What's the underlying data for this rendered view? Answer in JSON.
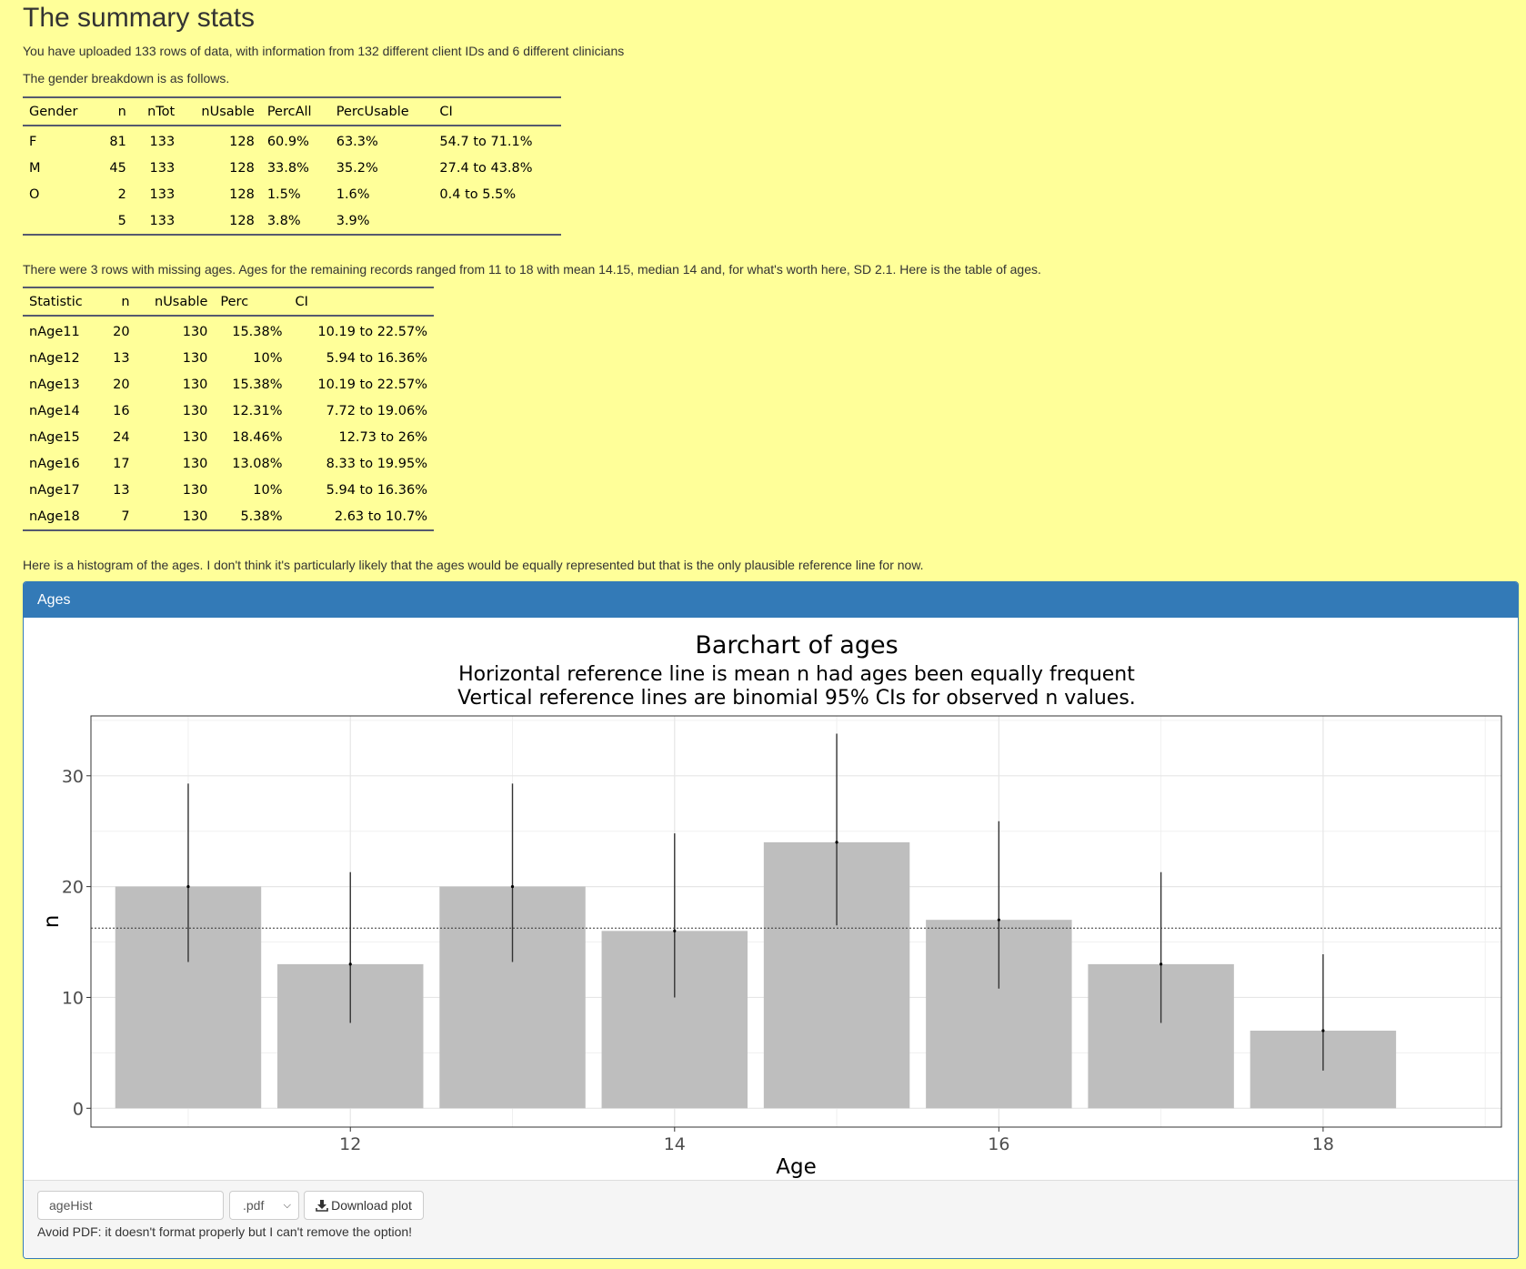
{
  "heading": "The summary stats",
  "intro": "You have uploaded 133 rows of data, with information from 132 different client IDs and 6 different clinicians",
  "gender_intro": "The gender breakdown is as follows.",
  "gender_table": {
    "headers": [
      "Gender",
      "n",
      "nTot",
      "nUsable",
      "PercAll",
      "PercUsable",
      "CI"
    ],
    "rows": [
      [
        "F",
        "81",
        "133",
        "128",
        "60.9%",
        "63.3%",
        "54.7 to 71.1%"
      ],
      [
        "M",
        "45",
        "133",
        "128",
        "33.8%",
        "35.2%",
        "27.4 to 43.8%"
      ],
      [
        "O",
        "2",
        "133",
        "128",
        "1.5%",
        "1.6%",
        "0.4 to 5.5%"
      ],
      [
        "",
        "5",
        "133",
        "128",
        "3.8%",
        "3.9%",
        ""
      ]
    ]
  },
  "age_intro": "There were 3 rows with missing ages. Ages for the remaining records ranged from 11 to 18 with mean 14.15, median 14 and, for what's worth here, SD 2.1. Here is the table of ages.",
  "age_table": {
    "headers": [
      "Statistic",
      "n",
      "nUsable",
      "Perc",
      "CI"
    ],
    "rows": [
      [
        "nAge11",
        "20",
        "130",
        "15.38%",
        "10.19 to 22.57%"
      ],
      [
        "nAge12",
        "13",
        "130",
        "10%",
        "5.94 to 16.36%"
      ],
      [
        "nAge13",
        "20",
        "130",
        "15.38%",
        "10.19 to 22.57%"
      ],
      [
        "nAge14",
        "16",
        "130",
        "12.31%",
        "7.72 to 19.06%"
      ],
      [
        "nAge15",
        "24",
        "130",
        "18.46%",
        "12.73 to 26%"
      ],
      [
        "nAge16",
        "17",
        "130",
        "13.08%",
        "8.33 to 19.95%"
      ],
      [
        "nAge17",
        "13",
        "130",
        "10%",
        "5.94 to 16.36%"
      ],
      [
        "nAge18",
        "7",
        "130",
        "5.38%",
        "2.63 to 10.7%"
      ]
    ]
  },
  "hist_intro": "Here is a histogram of the ages. I don't think it's particularly likely that the ages would be equally represented but that is the only plausible reference line for now.",
  "panel": {
    "title": "Ages",
    "filename_value": "ageHist",
    "format_selected": ".pdf",
    "download_label": "Download plot",
    "note": "Avoid PDF: it doesn't format properly but I can't remove the option!"
  },
  "colors": {
    "page_bg": "#ffff99",
    "panel_primary": "#337ab7",
    "bar_fill": "#bebebe"
  },
  "chart_data": {
    "type": "bar",
    "title": "Barchart of ages",
    "subtitle_lines": [
      "Horizontal reference line is mean n had ages been equally frequent",
      "Vertical reference lines are binomial 95% CIs for observed n values."
    ],
    "xlabel": "Age",
    "ylabel": "n",
    "categories": [
      11,
      12,
      13,
      14,
      15,
      16,
      17,
      18
    ],
    "values": [
      20,
      13,
      20,
      16,
      24,
      17,
      13,
      7
    ],
    "ci_low": [
      13.2,
      7.7,
      13.2,
      10.0,
      16.5,
      10.8,
      7.7,
      3.4
    ],
    "ci_high": [
      29.3,
      21.3,
      29.3,
      24.8,
      33.8,
      25.9,
      21.3,
      13.9
    ],
    "reference_line": 16.25,
    "xlim": [
      10.4,
      19.1
    ],
    "ylim": [
      -1.7,
      35.4
    ],
    "xticks": [
      12,
      14,
      16,
      18
    ],
    "yticks": [
      0,
      10,
      20,
      30
    ],
    "grid": true
  }
}
